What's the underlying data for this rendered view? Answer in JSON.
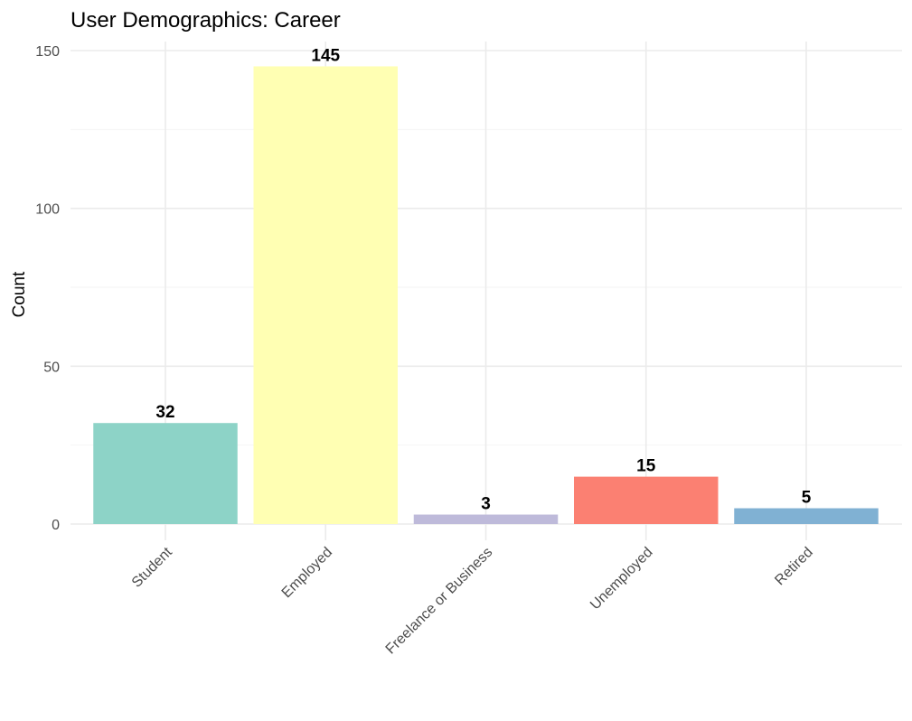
{
  "chart_data": {
    "type": "bar",
    "title": "User Demographics: Career",
    "xlabel": "",
    "ylabel": "Count",
    "categories": [
      "Student",
      "Employed",
      "Freelance or Business",
      "Unemployed",
      "Retired"
    ],
    "values": [
      32,
      145,
      3,
      15,
      5
    ],
    "data_labels": [
      "32",
      "145",
      "3",
      "15",
      "5"
    ],
    "colors": [
      "#8DD3C7",
      "#FFFFB3",
      "#BEBADA",
      "#FB8072",
      "#80B1D3"
    ],
    "ylim": [
      0,
      150
    ],
    "yticks": [
      0,
      50,
      100,
      150
    ],
    "ytick_labels": [
      "0",
      "50",
      "100",
      "150"
    ],
    "y_minor_ticks": [
      25,
      75,
      125
    ],
    "x_tick_rotation": 45,
    "grid": true,
    "legend": "none"
  }
}
